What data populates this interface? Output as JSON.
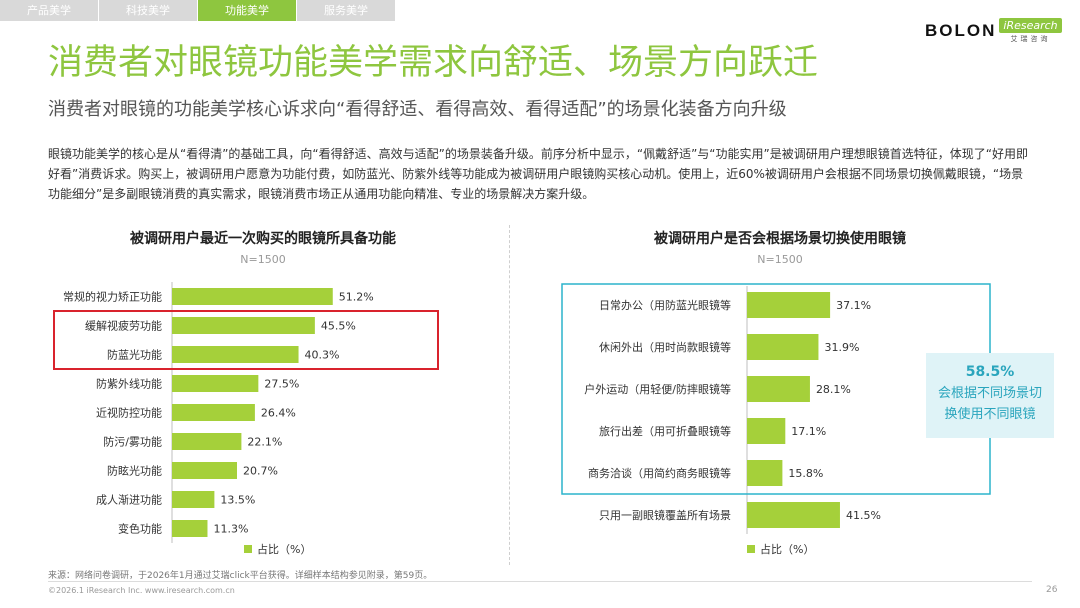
{
  "tabs": [
    "产品美学",
    "科技美学",
    "功能美学",
    "服务美学"
  ],
  "logo": {
    "brand": "BOLON",
    "partner": "iResearch",
    "partner_cn": "艾瑞咨询"
  },
  "title": "消费者对眼镜功能美学需求向舒适、场景方向跃迁",
  "subtitle": "消费者对眼镜的功能美学核心诉求向“看得舒适、看得高效、看得适配”的场景化装备方向升级",
  "intro": "眼镜功能美学的核心是从“看得清”的基础工具，向“看得舒适、高效与适配”的场景装备升级。前序分析中显示，“佩戴舒适”与“功能实用”是被调研用户理想眼镜首选特征，体现了“好用即好看”消费诉求。购买上，被调研用户愿意为功能付费，如防蓝光、防紫外线等功能成为被调研用户眼镜购买核心动机。使用上，近60%被调研用户会根据不同场景切换佩戴眼镜，“场景功能细分”是多副眼镜消费的真实需求，眼镜消费市场正从通用功能向精准、专业的场景解决方案升级。",
  "colors": {
    "accent": "#8ec63f",
    "bar": "#a5d03a",
    "highlight_border": "#d9232d",
    "group_border": "#2bb4cc"
  },
  "chart_data": [
    {
      "type": "bar",
      "orientation": "horizontal",
      "title": "被调研用户最近一次购买的眼镜所具备功能",
      "n_note": "N=1500",
      "categories": [
        "常规的视力矫正功能",
        "缓解视疲劳功能",
        "防蓝光功能",
        "防紫外线功能",
        "近视防控功能",
        "防污/雾功能",
        "防眩光功能",
        "成人渐进功能",
        "变色功能"
      ],
      "values": [
        51.2,
        45.5,
        40.3,
        27.5,
        26.4,
        22.1,
        20.7,
        13.5,
        11.3
      ],
      "labels": [
        "51.2%",
        "45.5%",
        "40.3%",
        "27.5%",
        "26.4%",
        "22.1%",
        "20.7%",
        "13.5%",
        "11.3%"
      ],
      "highlighted": [
        "缓解视疲劳功能",
        "防蓝光功能"
      ],
      "legend": "占比（%）"
    },
    {
      "type": "bar",
      "orientation": "horizontal",
      "title": "被调研用户是否会根据场景切换使用眼镜",
      "n_note": "N=1500",
      "categories": [
        "日常办公（用防蓝光眼镜等",
        "休闲外出（用时尚款眼镜等",
        "户外运动（用轻便/防摔眼镜等",
        "旅行出差（用可折叠眼镜等",
        "商务洽谈（用简约商务眼镜等",
        "只用一副眼镜覆盖所有场景"
      ],
      "values": [
        37.1,
        31.9,
        28.1,
        17.1,
        15.8,
        41.5
      ],
      "labels": [
        "37.1%",
        "31.9%",
        "28.1%",
        "17.1%",
        "15.8%",
        "41.5%"
      ],
      "grouped": [
        "日常办公（用防蓝光眼镜等",
        "休闲外出（用时尚款眼镜等",
        "户外运动（用轻便/防摔眼镜等",
        "旅行出差（用可折叠眼镜等",
        "商务洽谈（用简约商务眼镜等"
      ],
      "callout": {
        "value": "58.5%",
        "text_line1": "会根据不同场景切",
        "text_line2": "换使用不同眼镜"
      },
      "legend": "占比（%）"
    }
  ],
  "footer": {
    "source": "来源：网络问卷调研，于2026年1月通过艾瑞click平台获得。详细样本结构参见附录，第59页。",
    "copyright": "©2026.1 iResearch Inc. www.iresearch.com.cn",
    "page": "26"
  }
}
